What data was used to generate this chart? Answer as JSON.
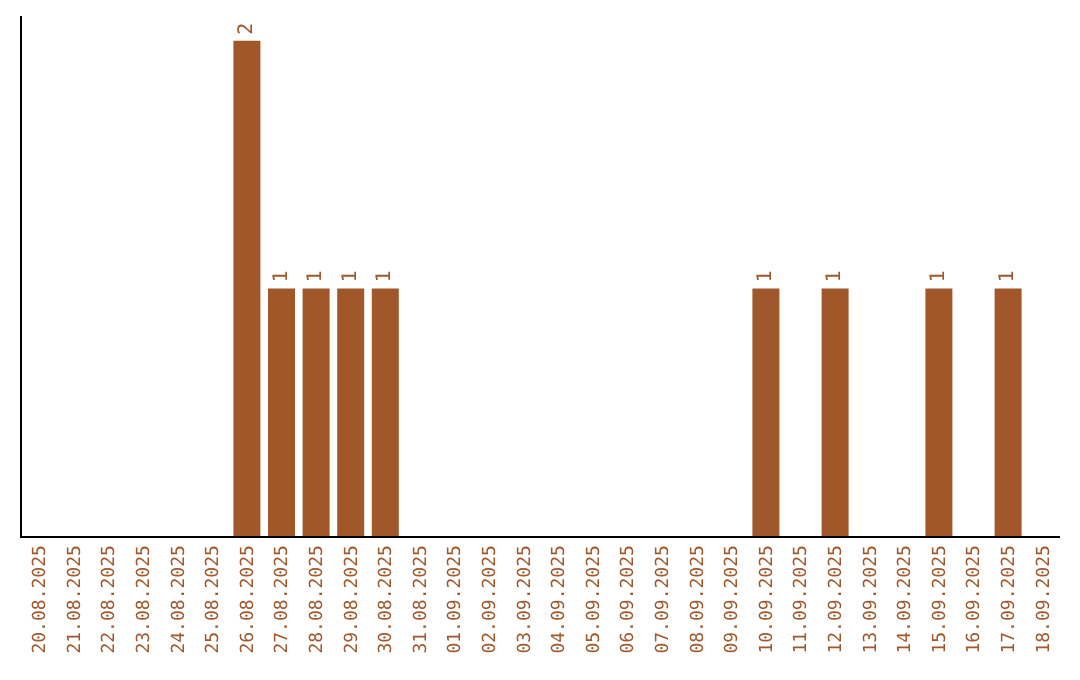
{
  "chart_data": {
    "type": "bar",
    "categories": [
      "20.08.2025",
      "21.08.2025",
      "22.08.2025",
      "23.08.2025",
      "24.08.2025",
      "25.08.2025",
      "26.08.2025",
      "27.08.2025",
      "28.08.2025",
      "29.08.2025",
      "30.08.2025",
      "31.08.2025",
      "01.09.2025",
      "02.09.2025",
      "03.09.2025",
      "04.09.2025",
      "05.09.2025",
      "06.09.2025",
      "07.09.2025",
      "08.09.2025",
      "09.09.2025",
      "10.09.2025",
      "11.09.2025",
      "12.09.2025",
      "13.09.2025",
      "14.09.2025",
      "15.09.2025",
      "16.09.2025",
      "17.09.2025",
      "18.09.2025"
    ],
    "values": [
      0,
      0,
      0,
      0,
      0,
      0,
      2,
      1,
      1,
      1,
      1,
      0,
      0,
      0,
      0,
      0,
      0,
      0,
      0,
      0,
      0,
      1,
      0,
      1,
      0,
      0,
      1,
      0,
      1,
      0
    ],
    "value_labels": [
      null,
      null,
      null,
      null,
      null,
      null,
      "2",
      "1",
      "1",
      "1",
      "1",
      null,
      null,
      null,
      null,
      null,
      null,
      null,
      null,
      null,
      null,
      "1",
      null,
      "1",
      null,
      null,
      "1",
      null,
      "1",
      null
    ],
    "color": "#a0572a",
    "ylim": [
      0,
      2.1
    ],
    "tick_labels": "x"
  }
}
